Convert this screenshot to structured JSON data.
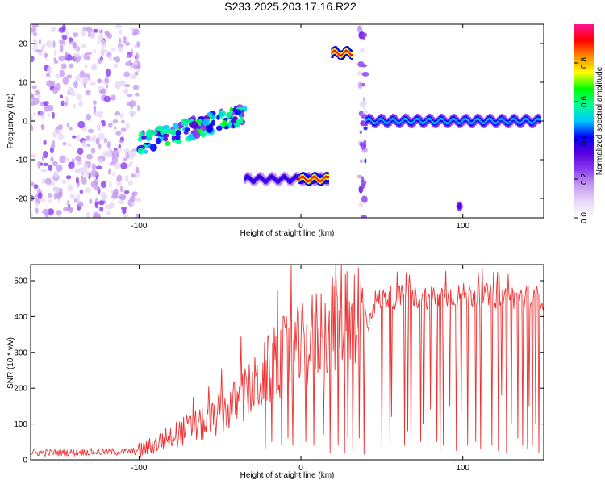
{
  "title": "S233.2025.203.17.16.R22",
  "colors": {
    "snr_line": "#f03232",
    "background": "#ffffff",
    "frame": "#000000",
    "spectral_ramp": [
      "#ffffff",
      "#e8d8f8",
      "#c79cf0",
      "#8a3cf0",
      "#5a00dc",
      "#0000ff",
      "#00c8ff",
      "#00ff96",
      "#00ff00",
      "#ffff00",
      "#ff8c00",
      "#ff0000",
      "#ff1493"
    ]
  },
  "chart_data": [
    {
      "type": "heatmap",
      "xlabel": "Height of straight line (km)",
      "ylabel": "Frequency (Hz)",
      "xlim": [
        -167,
        150
      ],
      "ylim": [
        -25,
        25
      ],
      "xticks": [
        -100,
        0,
        100
      ],
      "yticks": [
        -20,
        -10,
        0,
        10,
        20
      ],
      "colorbar": {
        "label": "Normalized spectral amplitude",
        "range": [
          0,
          1
        ],
        "ticks": [
          "0.0",
          "0.2",
          "0.4",
          "0.6",
          "0.8"
        ],
        "tick_values": [
          0.0,
          0.2,
          0.4,
          0.6,
          0.8
        ]
      },
      "features": [
        {
          "x_range": [
            -167,
            -100
          ],
          "freq_center": 0,
          "freq_spread": 25,
          "amplitude": 0.12,
          "kind": "noise"
        },
        {
          "x_range": [
            -100,
            -35
          ],
          "freq_start": -6,
          "freq_end": 2,
          "amplitude": 0.4,
          "kind": "ridge"
        },
        {
          "x_range": [
            -35,
            17
          ],
          "freq_center": -15,
          "amplitude": 0.45,
          "kind": "band"
        },
        {
          "x_range": [
            -1,
            17
          ],
          "freq_center": -15,
          "amplitude": 0.95,
          "kind": "band"
        },
        {
          "x_range": [
            19,
            32
          ],
          "freq_center": 17.5,
          "amplitude": 0.95,
          "kind": "band"
        },
        {
          "x_range": [
            36,
            40
          ],
          "freq_center": 0,
          "freq_spread": 25,
          "amplitude": 0.2,
          "kind": "stripe"
        },
        {
          "x_range": [
            40,
            148
          ],
          "freq_center": 0,
          "amplitude": 0.5,
          "kind": "band"
        },
        {
          "x_range": [
            97,
            99
          ],
          "freq_center": -22,
          "amplitude": 0.35,
          "kind": "blob"
        }
      ]
    },
    {
      "type": "line",
      "xlabel": "Height of straight line (km)",
      "ylabel": "SNR (10 * v/v)",
      "xlim": [
        -167,
        150
      ],
      "ylim": [
        0,
        545
      ],
      "xticks": [
        -100,
        0,
        100
      ],
      "yticks": [
        0,
        100,
        200,
        300,
        400,
        500
      ],
      "series": [
        {
          "x": [
            -167,
            -150,
            -130,
            -110,
            -100,
            -95,
            -90,
            -85,
            -80,
            -75,
            -70,
            -65,
            -60,
            -55,
            -50,
            -45,
            -40,
            -35,
            -30,
            -25,
            -20,
            -15,
            -10,
            -5,
            0,
            5,
            10,
            15,
            20,
            25,
            30,
            35,
            40,
            42,
            45,
            50,
            60,
            70,
            80,
            90,
            100,
            110,
            120,
            130,
            140,
            150
          ],
          "y": [
            20,
            20,
            22,
            22,
            25,
            35,
            45,
            55,
            65,
            75,
            85,
            95,
            100,
            110,
            130,
            140,
            160,
            180,
            200,
            220,
            250,
            270,
            290,
            300,
            310,
            330,
            350,
            370,
            390,
            410,
            430,
            420,
            400,
            390,
            440,
            450,
            455,
            455,
            455,
            460,
            460,
            460,
            455,
            455,
            455,
            455
          ],
          "dips": [
            [
              -22,
              30
            ],
            [
              -18,
              50
            ],
            [
              -12,
              40
            ],
            [
              -8,
              60
            ],
            [
              -5,
              40
            ],
            [
              3,
              50
            ],
            [
              8,
              40
            ],
            [
              14,
              70
            ],
            [
              18,
              20
            ],
            [
              23,
              40
            ],
            [
              27,
              20
            ],
            [
              29,
              60
            ],
            [
              32,
              30
            ],
            [
              36,
              60
            ],
            [
              39,
              15
            ],
            [
              50,
              30
            ],
            [
              55,
              40
            ],
            [
              56,
              120
            ],
            [
              64,
              40
            ],
            [
              66,
              80
            ],
            [
              68,
              30
            ],
            [
              74,
              50
            ],
            [
              76,
              100
            ],
            [
              80,
              140
            ],
            [
              84,
              50
            ],
            [
              86,
              15
            ],
            [
              88,
              40
            ],
            [
              92,
              150
            ],
            [
              96,
              25
            ],
            [
              99,
              130
            ],
            [
              103,
              40
            ],
            [
              108,
              50
            ],
            [
              111,
              30
            ],
            [
              118,
              40
            ],
            [
              122,
              25
            ],
            [
              124,
              180
            ],
            [
              127,
              20
            ],
            [
              130,
              100
            ],
            [
              134,
              60
            ],
            [
              137,
              40
            ],
            [
              140,
              30
            ],
            [
              141,
              150
            ],
            [
              143,
              40
            ],
            [
              145,
              100
            ],
            [
              147,
              20
            ]
          ]
        }
      ]
    }
  ]
}
